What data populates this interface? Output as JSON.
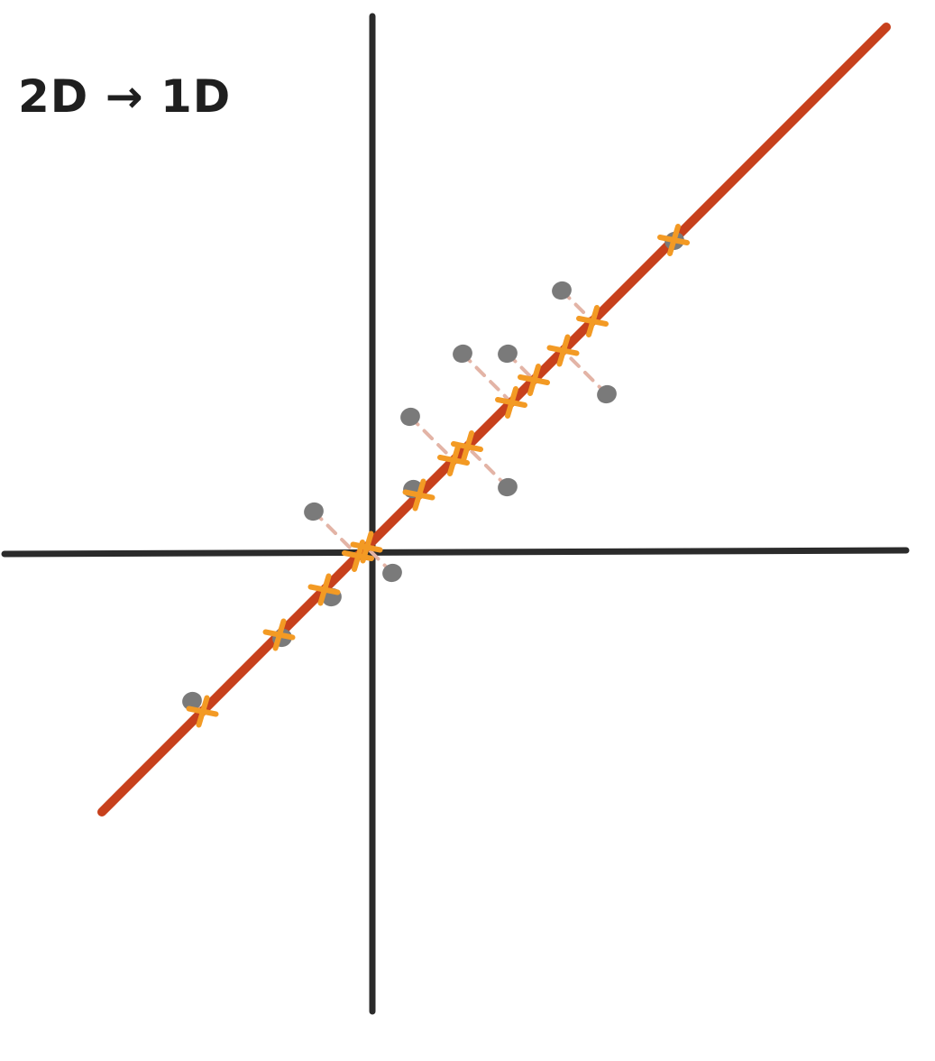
{
  "title": "2D → 1D",
  "colors": {
    "axes": "#2b2b2b",
    "line": "#c7401c",
    "points": "#7a7a7a",
    "projections": "#f39a24",
    "dashes": "#e3b4a6"
  },
  "line": {
    "slope": 1.0,
    "intercept": 0.12,
    "x_range": [
      -3.0,
      5.7
    ]
  },
  "points": [
    [
      -2.0,
      -1.65
    ],
    [
      -1.0,
      -0.95
    ],
    [
      -0.45,
      -0.5
    ],
    [
      -0.65,
      0.45
    ],
    [
      0.22,
      -0.23
    ],
    [
      0.45,
      0.7
    ],
    [
      0.42,
      1.5
    ],
    [
      1.0,
      2.2
    ],
    [
      1.5,
      2.2
    ],
    [
      1.5,
      0.72
    ],
    [
      2.1,
      2.9
    ],
    [
      2.6,
      1.75
    ],
    [
      3.35,
      3.45
    ]
  ]
}
